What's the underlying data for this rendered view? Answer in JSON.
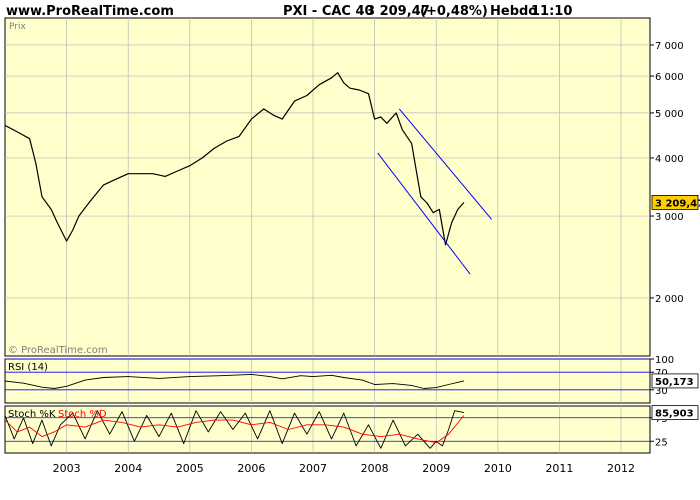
{
  "header": {
    "site": "www.ProRealTime.com",
    "instrument": "PXI - CAC 40",
    "last_value": "3 209,47",
    "change": "(+0,48%)",
    "period": "Hebdo",
    "time": "11:10"
  },
  "colors": {
    "panel_bg": "#FFFFCC",
    "page_bg": "#FFFFFF",
    "price_line": "#000000",
    "channel_line": "#0000FF",
    "value_tag": "#FFCC00",
    "grid": "#B8B8B8",
    "stoch_d": "#FF0000"
  },
  "chart_data": [
    {
      "type": "line",
      "panel_label": "Prix",
      "watermark": "© ProRealTime.com",
      "yscale": "log",
      "ylim": [
        1500,
        8000
      ],
      "y_ticks": [
        2000,
        3000,
        4000,
        5000,
        6000,
        7000
      ],
      "y_tick_labels": [
        "2 000",
        "3 000",
        "4 000",
        "5 000",
        "6 000",
        "7 000"
      ],
      "last_value_label": "3 209,47",
      "x_ticks": [
        "2003",
        "2004",
        "2005",
        "2006",
        "2007",
        "2008",
        "2009",
        "2010",
        "2011",
        "2012"
      ],
      "series": [
        {
          "x": [
            2002.0,
            2002.2,
            2002.4,
            2002.5,
            2002.6,
            2002.75,
            2002.85,
            2003.0,
            2003.1,
            2003.2,
            2003.4,
            2003.6,
            2003.8,
            2004.0,
            2004.2,
            2004.4,
            2004.6,
            2004.8,
            2005.0,
            2005.2,
            2005.4,
            2005.6,
            2005.8,
            2006.0,
            2006.2,
            2006.35,
            2006.5,
            2006.7,
            2006.9,
            2007.1,
            2007.3,
            2007.4,
            2007.5,
            2007.6,
            2007.75,
            2007.9,
            2008.0,
            2008.1,
            2008.2,
            2008.35,
            2008.45,
            2008.6,
            2008.75,
            2008.85,
            2008.95,
            2009.05,
            2009.15,
            2009.25,
            2009.35,
            2009.45
          ],
          "y": [
            4700,
            4550,
            4400,
            3900,
            3300,
            3100,
            2900,
            2650,
            2800,
            3000,
            3250,
            3500,
            3600,
            3700,
            3700,
            3700,
            3650,
            3750,
            3850,
            4000,
            4200,
            4350,
            4450,
            4850,
            5100,
            4950,
            4850,
            5300,
            5450,
            5750,
            5950,
            6100,
            5800,
            5650,
            5600,
            5500,
            4850,
            4900,
            4750,
            5000,
            4600,
            4300,
            3300,
            3200,
            3050,
            3100,
            2600,
            2900,
            3100,
            3209.47
          ]
        }
      ],
      "channel": [
        {
          "x": [
            2008.4,
            2009.9
          ],
          "y": [
            5100,
            2950
          ]
        },
        {
          "x": [
            2008.05,
            2009.55
          ],
          "y": [
            4100,
            2250
          ]
        }
      ]
    },
    {
      "type": "line",
      "panel_label": "RSI (14)",
      "ylim": [
        0,
        100
      ],
      "y_ticks": [
        100,
        70,
        30
      ],
      "y_tick_labels": [
        "100",
        "70",
        "30"
      ],
      "last_value_label": "50,173",
      "series": [
        {
          "x": [
            2002.0,
            2002.3,
            2002.6,
            2002.8,
            2003.0,
            2003.3,
            2003.6,
            2004.0,
            2004.5,
            2005.0,
            2005.5,
            2006.0,
            2006.3,
            2006.5,
            2006.8,
            2007.0,
            2007.3,
            2007.5,
            2007.8,
            2008.0,
            2008.3,
            2008.6,
            2008.8,
            2009.0,
            2009.2,
            2009.45
          ],
          "y": [
            50,
            45,
            36,
            33,
            38,
            52,
            58,
            60,
            56,
            60,
            62,
            65,
            60,
            55,
            62,
            60,
            63,
            58,
            52,
            42,
            44,
            40,
            33,
            35,
            42,
            50.17
          ]
        }
      ]
    },
    {
      "type": "line",
      "panel_label": "Stoch %K",
      "legend": [
        "Stoch %K",
        "Stoch %D"
      ],
      "ylim": [
        0,
        100
      ],
      "y_ticks": [
        75,
        25
      ],
      "y_tick_labels": [
        "75",
        "25"
      ],
      "last_value_label": "85,903",
      "series": [
        {
          "name": "Stoch %K",
          "x": [
            2002.0,
            2002.15,
            2002.3,
            2002.45,
            2002.6,
            2002.75,
            2002.9,
            2003.1,
            2003.3,
            2003.5,
            2003.7,
            2003.9,
            2004.1,
            2004.3,
            2004.5,
            2004.7,
            2004.9,
            2005.1,
            2005.3,
            2005.5,
            2005.7,
            2005.9,
            2006.1,
            2006.3,
            2006.5,
            2006.7,
            2006.9,
            2007.1,
            2007.3,
            2007.5,
            2007.7,
            2007.9,
            2008.1,
            2008.3,
            2008.5,
            2008.7,
            2008.9,
            2009.0,
            2009.1,
            2009.2,
            2009.3,
            2009.45
          ],
          "y": [
            80,
            30,
            75,
            20,
            70,
            15,
            60,
            85,
            30,
            90,
            40,
            88,
            25,
            80,
            35,
            85,
            20,
            90,
            45,
            88,
            50,
            85,
            30,
            90,
            20,
            85,
            40,
            88,
            30,
            85,
            15,
            60,
            10,
            70,
            15,
            40,
            10,
            25,
            15,
            50,
            90,
            85.9
          ]
        },
        {
          "name": "Stoch %D",
          "x": [
            2002.0,
            2002.2,
            2002.4,
            2002.6,
            2002.8,
            2003.0,
            2003.3,
            2003.6,
            2003.9,
            2004.2,
            2004.5,
            2004.8,
            2005.1,
            2005.4,
            2005.7,
            2006.0,
            2006.3,
            2006.6,
            2006.9,
            2007.2,
            2007.5,
            2007.8,
            2008.1,
            2008.4,
            2008.7,
            2009.0,
            2009.2,
            2009.45
          ],
          "y": [
            70,
            45,
            55,
            35,
            45,
            60,
            55,
            70,
            65,
            55,
            60,
            55,
            65,
            70,
            70,
            60,
            65,
            50,
            60,
            60,
            55,
            40,
            35,
            40,
            30,
            22,
            40,
            80
          ]
        }
      ]
    }
  ]
}
